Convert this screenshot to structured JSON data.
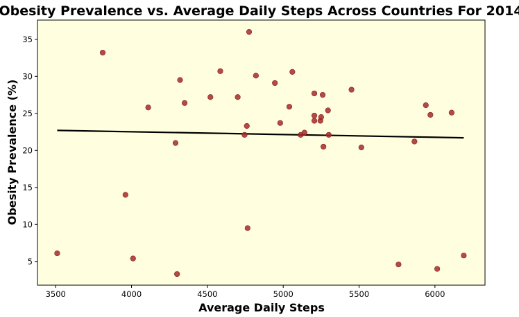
{
  "chart_data": {
    "type": "scatter",
    "title": "Obesity Prevalence vs. Average Daily Steps Across Countries For 2014",
    "xlabel": "Average Daily Steps",
    "ylabel": "Obesity Prevalence (%)",
    "xlim": [
      3380,
      6330
    ],
    "ylim": [
      1.8,
      37.6
    ],
    "xticks": [
      3500,
      4000,
      4500,
      5000,
      5500,
      6000
    ],
    "yticks": [
      5,
      10,
      15,
      20,
      25,
      30,
      35
    ],
    "grid": false,
    "background_color": "#ffffe0",
    "point_color": "#a52a2a",
    "line_color": "#000000",
    "series": [
      {
        "type": "scatter",
        "points": [
          [
            3510,
            6.1
          ],
          [
            3810,
            33.2
          ],
          [
            3960,
            14.0
          ],
          [
            4010,
            5.4
          ],
          [
            4110,
            25.8
          ],
          [
            4290,
            21.0
          ],
          [
            4300,
            3.3
          ],
          [
            4320,
            29.5
          ],
          [
            4350,
            26.4
          ],
          [
            4520,
            27.2
          ],
          [
            4585,
            30.7
          ],
          [
            4700,
            27.2
          ],
          [
            4745,
            22.1
          ],
          [
            4760,
            23.3
          ],
          [
            4765,
            9.5
          ],
          [
            4775,
            36.0
          ],
          [
            4820,
            30.1
          ],
          [
            4945,
            29.1
          ],
          [
            4980,
            23.7
          ],
          [
            5040,
            25.9
          ],
          [
            5060,
            30.6
          ],
          [
            5115,
            22.1
          ],
          [
            5140,
            22.4
          ],
          [
            5205,
            27.7
          ],
          [
            5205,
            24.7
          ],
          [
            5205,
            24.0
          ],
          [
            5245,
            24.0
          ],
          [
            5250,
            24.5
          ],
          [
            5260,
            27.5
          ],
          [
            5265,
            20.5
          ],
          [
            5295,
            25.4
          ],
          [
            5300,
            22.1
          ],
          [
            5450,
            28.2
          ],
          [
            5515,
            20.4
          ],
          [
            5760,
            4.6
          ],
          [
            5865,
            21.2
          ],
          [
            5940,
            26.1
          ],
          [
            5970,
            24.8
          ],
          [
            6015,
            4.0
          ],
          [
            6110,
            25.1
          ],
          [
            6190,
            5.8
          ]
        ]
      },
      {
        "type": "line",
        "points": [
          [
            3510,
            22.7
          ],
          [
            6190,
            21.7
          ]
        ]
      }
    ]
  }
}
